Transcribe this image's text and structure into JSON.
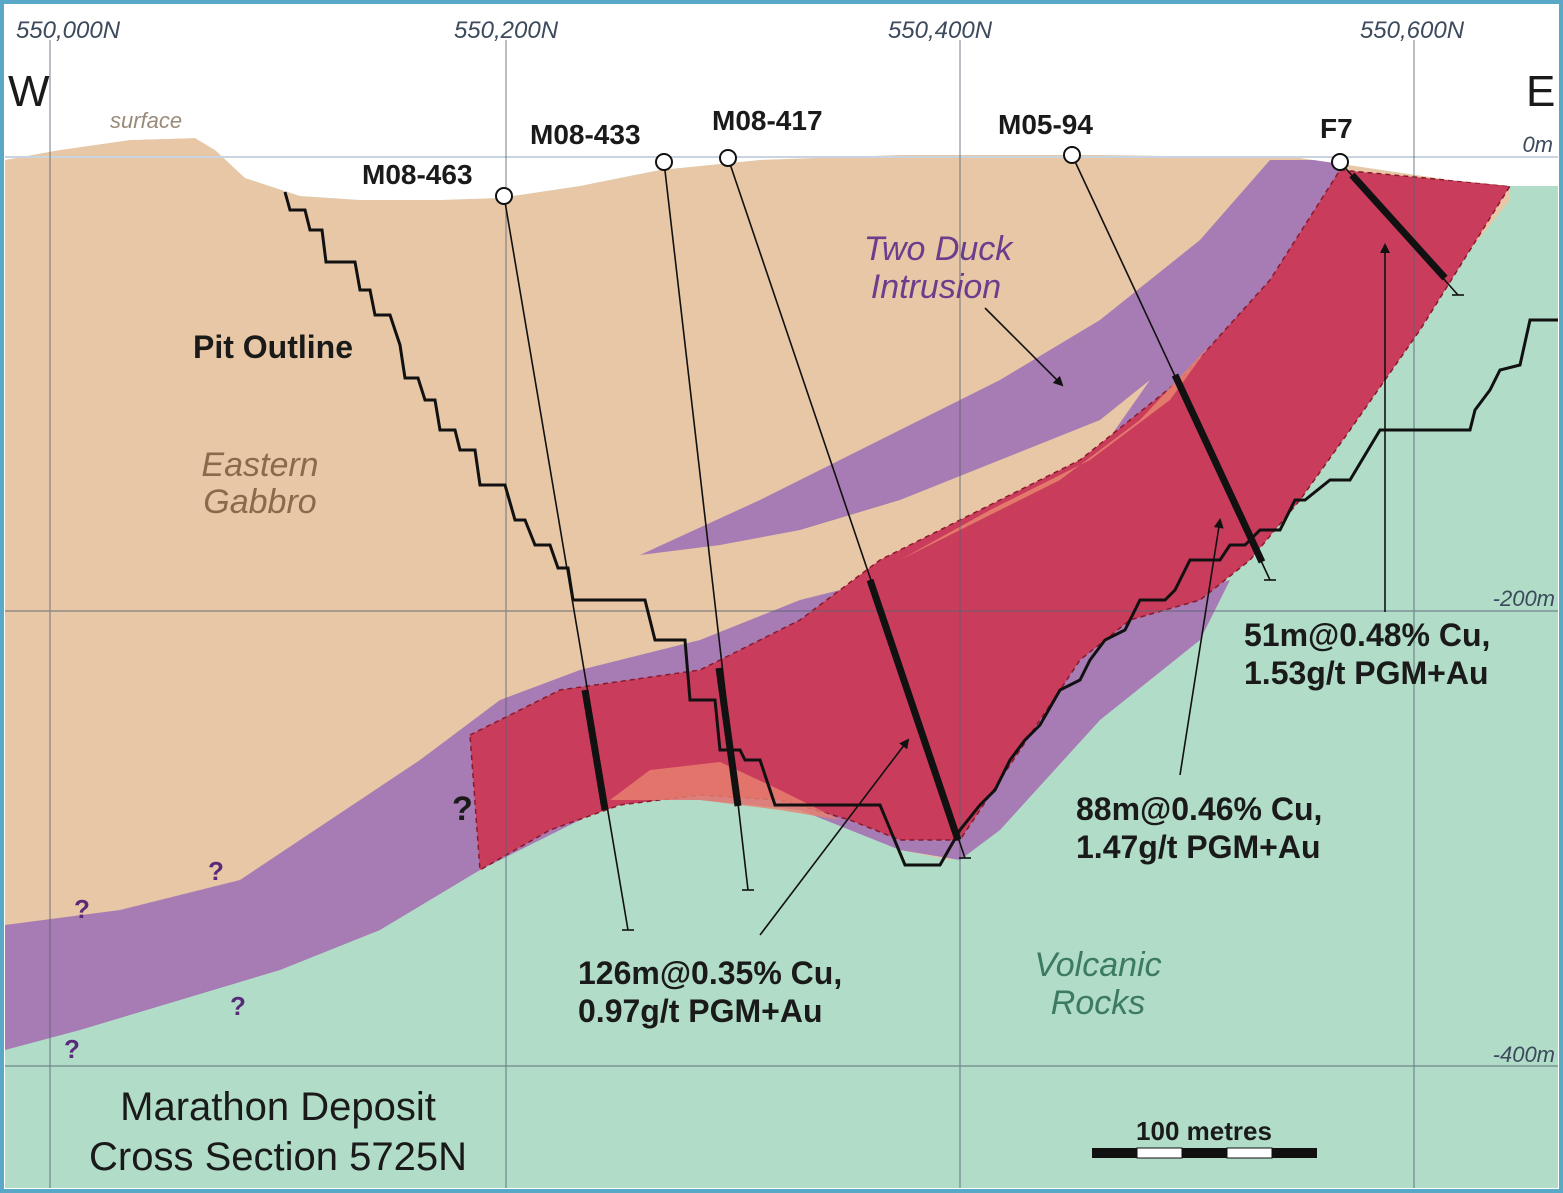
{
  "section": {
    "title_line1": "Marathon Deposit",
    "title_line2": "Cross Section 5725N"
  },
  "compass": {
    "west": "W",
    "east": "E"
  },
  "grid": {
    "eastings": [
      "550,000N",
      "550,200N",
      "550,400N",
      "550,600N"
    ],
    "depths": [
      "0m",
      "-200m",
      "-400m"
    ]
  },
  "labels": {
    "surface": "surface",
    "pit_outline": "Pit Outline",
    "eastern_gabbro_1": "Eastern",
    "eastern_gabbro_2": "Gabbro",
    "two_duck_1": "Two Duck",
    "two_duck_2": "Intrusion",
    "volcanic_1": "Volcanic",
    "volcanic_2": "Rocks",
    "question_mark": "?"
  },
  "drillholes": [
    "M08-463",
    "M08-433",
    "M08-417",
    "M05-94",
    "F7"
  ],
  "intercepts": {
    "a_line1": "126m@0.35% Cu,",
    "a_line2": "0.97g/t PGM+Au",
    "b_line1": "88m@0.46% Cu,",
    "b_line2": "1.47g/t PGM+Au",
    "c_line1": "51m@0.48% Cu,",
    "c_line2": "1.53g/t PGM+Au"
  },
  "scale_bar": {
    "label": "100 metres"
  },
  "colors": {
    "sky": "#ffffff",
    "gabbro": "#e7c7a5",
    "volcanic": "#b0dcc8",
    "two_duck": "#a77bb3",
    "ore_zone": "#c93c5c",
    "ore_light": "#e8826f",
    "frame": "#5aa8c8"
  }
}
